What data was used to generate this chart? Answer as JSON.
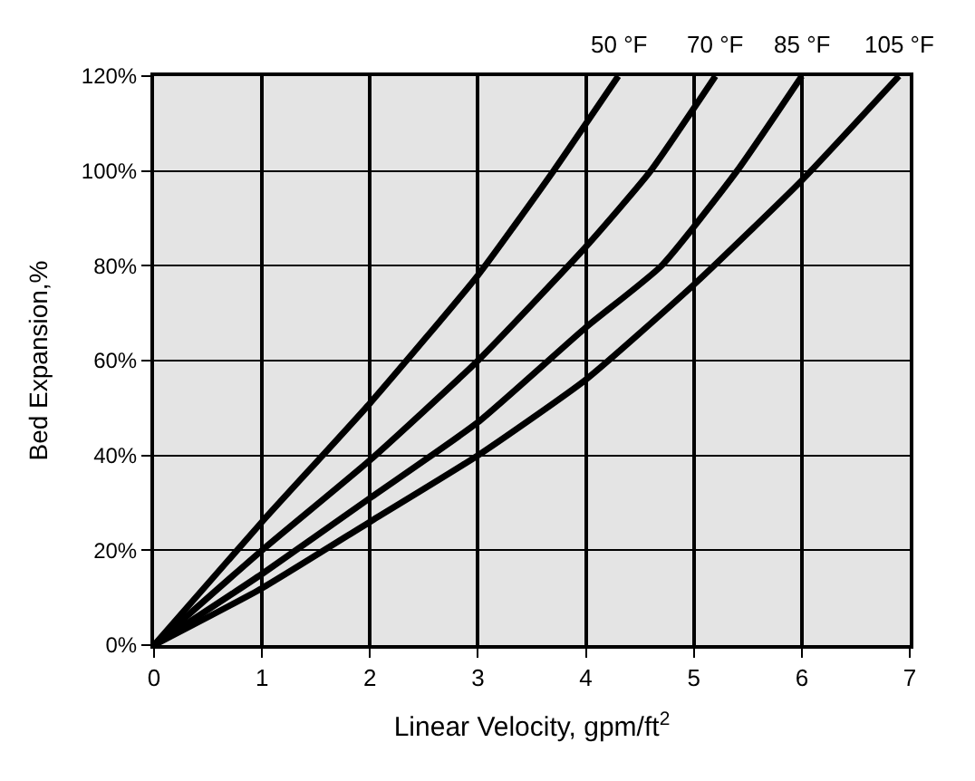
{
  "chart_data": {
    "type": "line",
    "xlabel": "Linear Velocity, gpm/ft$^{2}$",
    "ylabel": "Bed Expansion,%",
    "xlim": [
      0,
      7
    ],
    "xticks": [
      0,
      1,
      2,
      3,
      4,
      5,
      6,
      7
    ],
    "ylim": [
      0,
      120
    ],
    "yticks": [
      {
        "value": 0,
        "label": "0%"
      },
      {
        "value": 20,
        "label": "20%"
      },
      {
        "value": 40,
        "label": "40%"
      },
      {
        "value": 60,
        "label": "60%"
      },
      {
        "value": 80,
        "label": "80%"
      },
      {
        "value": 100,
        "label": "100%"
      },
      {
        "value": 120,
        "label": "120%"
      }
    ],
    "grid": true,
    "legend": false,
    "marker": "none",
    "line_style": "solid",
    "series": [
      {
        "name": "50 °F",
        "color": "#000000",
        "x": [
          0,
          1,
          2,
          3,
          3.7,
          4.3
        ],
        "values": [
          0,
          26,
          51,
          78,
          100,
          120
        ]
      },
      {
        "name": "70 °F",
        "color": "#000000",
        "x": [
          0,
          1,
          2,
          3,
          4,
          4.6,
          5.2
        ],
        "values": [
          0,
          20,
          39,
          60,
          84,
          100,
          120
        ]
      },
      {
        "name": "85 °F",
        "color": "#000000",
        "x": [
          0,
          1,
          2,
          3,
          4,
          4.7,
          5.4,
          6
        ],
        "values": [
          0,
          15,
          31,
          47,
          67,
          80,
          100,
          120
        ]
      },
      {
        "name": "105 °F",
        "color": "#000000",
        "x": [
          0,
          1,
          2,
          3,
          4,
          5,
          6,
          6.9
        ],
        "values": [
          0,
          12,
          26,
          40,
          56,
          76,
          98,
          120
        ]
      }
    ]
  }
}
